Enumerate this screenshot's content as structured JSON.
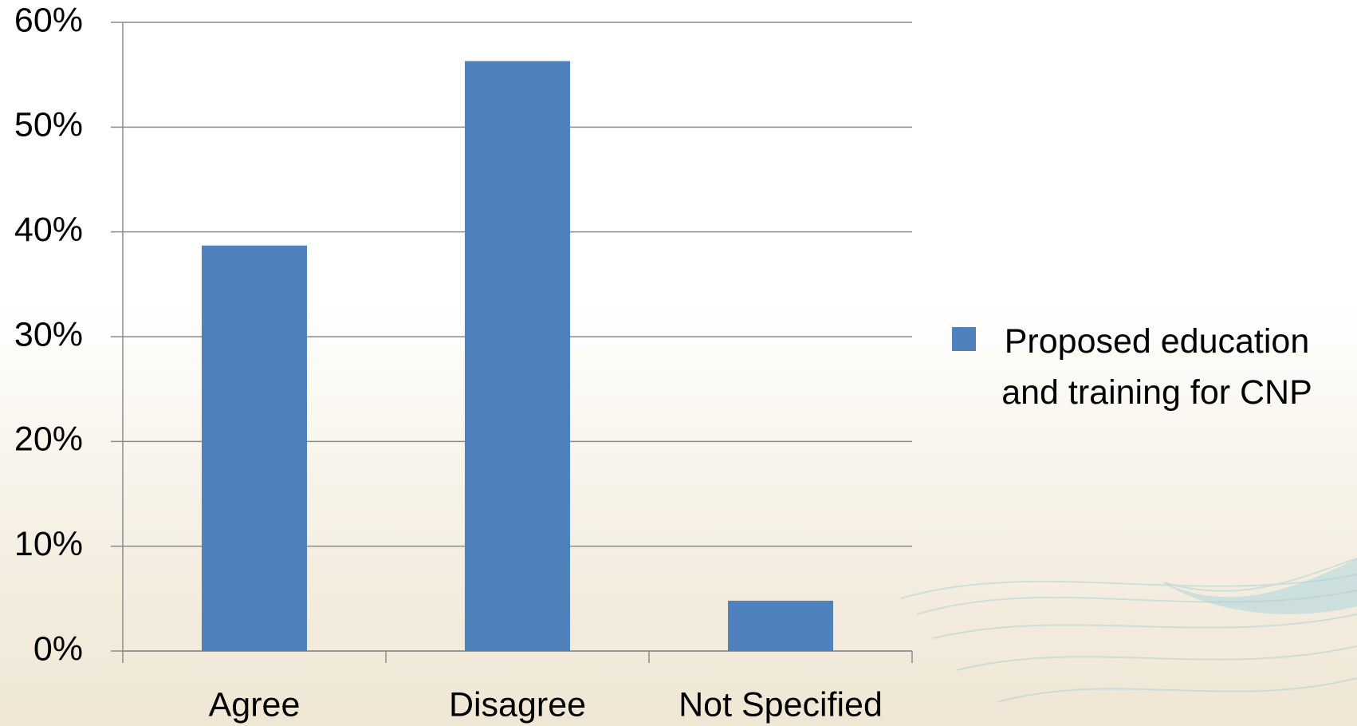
{
  "chart_data": {
    "type": "bar",
    "categories": [
      "Agree",
      "Disagree",
      "Not Specified"
    ],
    "series": [
      {
        "name": "Proposed education and training for CNP",
        "color": "#4f81bd",
        "values": [
          38.7,
          56.3,
          4.8
        ]
      }
    ],
    "ylim": [
      0,
      60
    ],
    "yticks": [
      {
        "value": 0,
        "label": "0%"
      },
      {
        "value": 10,
        "label": "10%"
      },
      {
        "value": 20,
        "label": "20%"
      },
      {
        "value": 30,
        "label": "30%"
      },
      {
        "value": 40,
        "label": "40%"
      },
      {
        "value": 50,
        "label": "50%"
      },
      {
        "value": 60,
        "label": "60%"
      }
    ],
    "grid": true,
    "legend": "right"
  }
}
